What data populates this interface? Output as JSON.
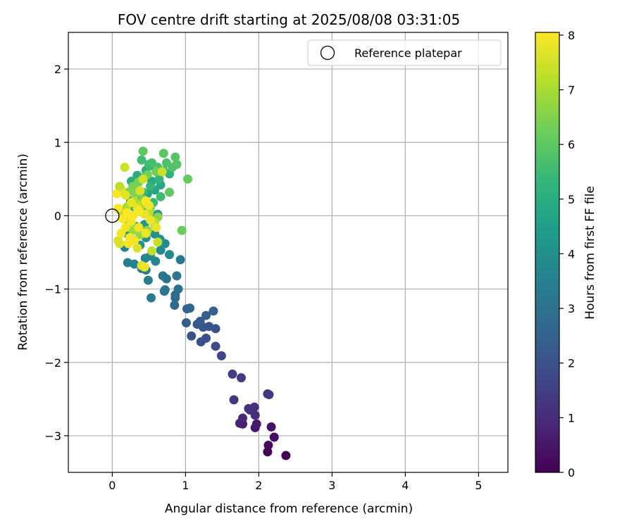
{
  "chart_data": {
    "type": "scatter",
    "title": "FOV centre drift starting at 2025/08/08 03:31:05",
    "xlabel": "Angular distance from reference (arcmin)",
    "ylabel": "Rotation from reference (arcmin)",
    "xlim": [
      -0.6,
      5.4
    ],
    "ylim": [
      -3.5,
      2.5
    ],
    "xticks": [
      0,
      1,
      2,
      3,
      4,
      5
    ],
    "xtick_labels": [
      "0",
      "1",
      "2",
      "3",
      "4",
      "5"
    ],
    "yticks": [
      -3,
      -2,
      -1,
      0,
      1,
      2
    ],
    "ytick_labels": [
      "−3",
      "−2",
      "−1",
      "0",
      "1",
      "2"
    ],
    "grid": true,
    "legend": {
      "position": "top-right",
      "entries": [
        "Reference platepar"
      ]
    },
    "reference_point": {
      "x": 0,
      "y": 0,
      "marker": "open-circle"
    },
    "colorbar": {
      "label": "Hours from first FF file",
      "colormap": "viridis",
      "range": [
        0,
        8.05
      ],
      "ticks": [
        0,
        1,
        2,
        3,
        4,
        5,
        6,
        7,
        8
      ],
      "tick_labels": [
        "0",
        "1",
        "2",
        "3",
        "4",
        "5",
        "6",
        "7",
        "8"
      ],
      "colors": [
        "#440154",
        "#482878",
        "#3e4a89",
        "#31688e",
        "#26828e",
        "#1f9e89",
        "#35b779",
        "#6ece58",
        "#b5de2b",
        "#fde725"
      ]
    },
    "series": [
      {
        "points": [
          [
            2.37,
            -3.27,
            0.0
          ],
          [
            2.12,
            -3.22,
            0.1
          ],
          [
            2.13,
            -3.13,
            0.2
          ],
          [
            2.21,
            -3.02,
            0.3
          ],
          [
            2.17,
            -2.88,
            0.4
          ],
          [
            1.95,
            -2.89,
            0.5
          ],
          [
            1.97,
            -2.84,
            0.6
          ],
          [
            1.78,
            -2.84,
            0.7
          ],
          [
            1.74,
            -2.83,
            0.8
          ],
          [
            1.78,
            -2.76,
            0.9
          ],
          [
            1.95,
            -2.72,
            1.0
          ],
          [
            1.88,
            -2.65,
            1.05
          ],
          [
            1.94,
            -2.61,
            1.1
          ],
          [
            1.86,
            -2.63,
            1.15
          ],
          [
            2.12,
            -2.43,
            1.2
          ],
          [
            2.14,
            -2.44,
            1.25
          ],
          [
            1.66,
            -2.51,
            1.3
          ],
          [
            1.76,
            -2.21,
            1.4
          ],
          [
            1.64,
            -2.16,
            1.5
          ],
          [
            1.49,
            -1.91,
            1.7
          ],
          [
            1.41,
            -1.78,
            1.8
          ],
          [
            1.21,
            -1.72,
            1.9
          ],
          [
            1.28,
            -1.67,
            1.95
          ],
          [
            1.08,
            -1.64,
            2.0
          ],
          [
            1.41,
            -1.54,
            2.05
          ],
          [
            1.32,
            -1.51,
            2.1
          ],
          [
            1.24,
            -1.52,
            2.15
          ],
          [
            1.16,
            -1.48,
            2.2
          ],
          [
            1.2,
            -1.44,
            2.25
          ],
          [
            1.01,
            -1.46,
            2.3
          ],
          [
            1.28,
            -1.36,
            2.4
          ],
          [
            1.38,
            -1.3,
            2.5
          ],
          [
            1.02,
            -1.27,
            2.6
          ],
          [
            1.06,
            -1.26,
            2.65
          ],
          [
            0.85,
            -1.22,
            2.7
          ],
          [
            0.86,
            -1.12,
            2.8
          ],
          [
            0.86,
            -1.08,
            2.85
          ],
          [
            0.9,
            -1.0,
            2.9
          ],
          [
            0.72,
            -1.01,
            3.0
          ],
          [
            0.71,
            -1.03,
            3.05
          ],
          [
            0.74,
            -0.86,
            3.1
          ],
          [
            0.69,
            -0.82,
            3.15
          ],
          [
            0.88,
            -0.82,
            3.2
          ],
          [
            0.93,
            -0.6,
            3.25
          ],
          [
            0.53,
            -1.12,
            3.3
          ],
          [
            0.49,
            -0.88,
            3.35
          ],
          [
            0.46,
            -0.74,
            3.4
          ],
          [
            0.4,
            -0.72,
            3.45
          ],
          [
            0.21,
            -0.64,
            3.5
          ],
          [
            0.3,
            -0.66,
            3.55
          ],
          [
            0.17,
            -0.43,
            3.6
          ],
          [
            0.45,
            -0.58,
            3.65
          ],
          [
            0.59,
            -0.62,
            3.7
          ],
          [
            0.52,
            -0.55,
            3.75
          ],
          [
            0.66,
            -0.47,
            3.8
          ],
          [
            0.78,
            -0.53,
            3.85
          ],
          [
            0.72,
            -0.38,
            3.9
          ],
          [
            0.65,
            -0.32,
            3.95
          ],
          [
            0.58,
            -0.25,
            4.0
          ],
          [
            0.46,
            -0.3,
            4.05
          ],
          [
            0.38,
            -0.4,
            4.1
          ],
          [
            0.28,
            -0.33,
            4.15
          ],
          [
            0.22,
            -0.26,
            4.2
          ],
          [
            0.33,
            -0.15,
            4.25
          ],
          [
            0.44,
            -0.12,
            4.3
          ],
          [
            0.56,
            -0.05,
            4.35
          ],
          [
            0.62,
            0.02,
            4.4
          ],
          [
            0.5,
            0.05,
            4.45
          ],
          [
            0.4,
            0.08,
            4.5
          ],
          [
            0.3,
            0.12,
            4.55
          ],
          [
            0.25,
            0.2,
            4.6
          ],
          [
            0.36,
            0.26,
            4.65
          ],
          [
            0.48,
            0.3,
            4.7
          ],
          [
            0.58,
            0.35,
            4.75
          ],
          [
            0.66,
            0.42,
            4.8
          ],
          [
            0.54,
            0.47,
            4.85
          ],
          [
            0.44,
            0.52,
            4.9
          ],
          [
            0.34,
            0.55,
            4.95
          ],
          [
            0.26,
            0.47,
            5.0
          ],
          [
            0.46,
            0.62,
            5.05
          ],
          [
            0.58,
            0.66,
            5.1
          ],
          [
            0.7,
            0.61,
            5.15
          ],
          [
            0.78,
            0.57,
            5.2
          ],
          [
            0.64,
            0.5,
            5.25
          ],
          [
            0.52,
            0.4,
            5.3
          ],
          [
            0.42,
            0.32,
            5.35
          ],
          [
            0.3,
            0.37,
            5.4
          ],
          [
            0.56,
            0.18,
            5.45
          ],
          [
            0.66,
            0.26,
            5.5
          ],
          [
            0.5,
            0.7,
            5.55
          ],
          [
            0.4,
            0.76,
            5.6
          ],
          [
            0.54,
            0.72,
            5.65
          ],
          [
            0.62,
            0.66,
            5.7
          ],
          [
            0.74,
            0.72,
            5.75
          ],
          [
            0.82,
            0.66,
            5.8
          ],
          [
            0.88,
            0.7,
            5.85
          ],
          [
            0.86,
            0.8,
            5.9
          ],
          [
            0.7,
            0.85,
            5.95
          ],
          [
            0.42,
            0.88,
            6.0
          ],
          [
            0.78,
            0.32,
            6.05
          ],
          [
            1.03,
            0.5,
            6.1
          ],
          [
            0.95,
            -0.2,
            6.2
          ],
          [
            0.6,
            0.6,
            6.25
          ],
          [
            0.48,
            0.56,
            6.3
          ],
          [
            0.36,
            0.46,
            6.35
          ],
          [
            0.28,
            0.4,
            6.4
          ],
          [
            0.22,
            0.32,
            6.45
          ],
          [
            0.32,
            0.3,
            6.5
          ],
          [
            0.42,
            0.22,
            6.55
          ],
          [
            0.52,
            0.1,
            6.6
          ],
          [
            0.62,
            -0.02,
            6.65
          ],
          [
            0.58,
            -0.12,
            6.7
          ],
          [
            0.48,
            -0.2,
            6.75
          ],
          [
            0.38,
            -0.26,
            6.8
          ],
          [
            0.28,
            -0.2,
            6.85
          ],
          [
            0.22,
            -0.1,
            6.9
          ],
          [
            0.16,
            0.0,
            6.95
          ],
          [
            0.1,
            0.08,
            7.0
          ],
          [
            0.2,
            0.12,
            7.05
          ],
          [
            0.3,
            0.2,
            7.1
          ],
          [
            0.4,
            0.14,
            7.15
          ],
          [
            0.5,
            0.04,
            7.2
          ],
          [
            0.56,
            -0.08,
            7.25
          ],
          [
            0.54,
            -0.48,
            7.3
          ],
          [
            0.62,
            -0.36,
            7.35
          ],
          [
            0.68,
            0.6,
            7.4
          ],
          [
            0.17,
            0.66,
            7.45
          ],
          [
            0.42,
            0.5,
            7.5
          ],
          [
            0.08,
            -0.34,
            7.55
          ],
          [
            0.1,
            -0.38,
            7.6
          ],
          [
            0.34,
            -0.44,
            7.65
          ],
          [
            0.4,
            -0.68,
            7.7
          ],
          [
            0.12,
            0.36,
            7.72
          ],
          [
            0.18,
            0.28,
            7.74
          ],
          [
            0.26,
            0.18,
            7.76
          ],
          [
            0.34,
            0.1,
            7.78
          ],
          [
            0.44,
            0.02,
            7.8
          ],
          [
            0.52,
            -0.06,
            7.82
          ],
          [
            0.6,
            -0.16,
            7.84
          ],
          [
            0.46,
            -0.24,
            7.86
          ],
          [
            0.36,
            -0.16,
            7.88
          ],
          [
            0.26,
            -0.08,
            7.9
          ],
          [
            0.18,
            -0.16,
            7.92
          ],
          [
            0.12,
            -0.24,
            7.94
          ],
          [
            0.24,
            -0.3,
            7.96
          ],
          [
            0.3,
            -0.34,
            7.97
          ],
          [
            0.22,
            -0.38,
            7.98
          ],
          [
            0.06,
            0.3,
            7.99
          ],
          [
            0.08,
            0.1,
            8.0
          ],
          [
            0.14,
            -0.04,
            8.01
          ],
          [
            0.2,
            0.04,
            8.02
          ],
          [
            0.28,
            0.0,
            8.03
          ],
          [
            0.36,
            0.06,
            8.04
          ],
          [
            0.46,
            0.2,
            8.05
          ],
          [
            0.44,
            -0.7,
            7.85
          ],
          [
            0.5,
            0.14,
            7.9
          ],
          [
            0.38,
            0.34,
            7.6
          ],
          [
            0.1,
            0.4,
            7.3
          ]
        ]
      }
    ]
  }
}
